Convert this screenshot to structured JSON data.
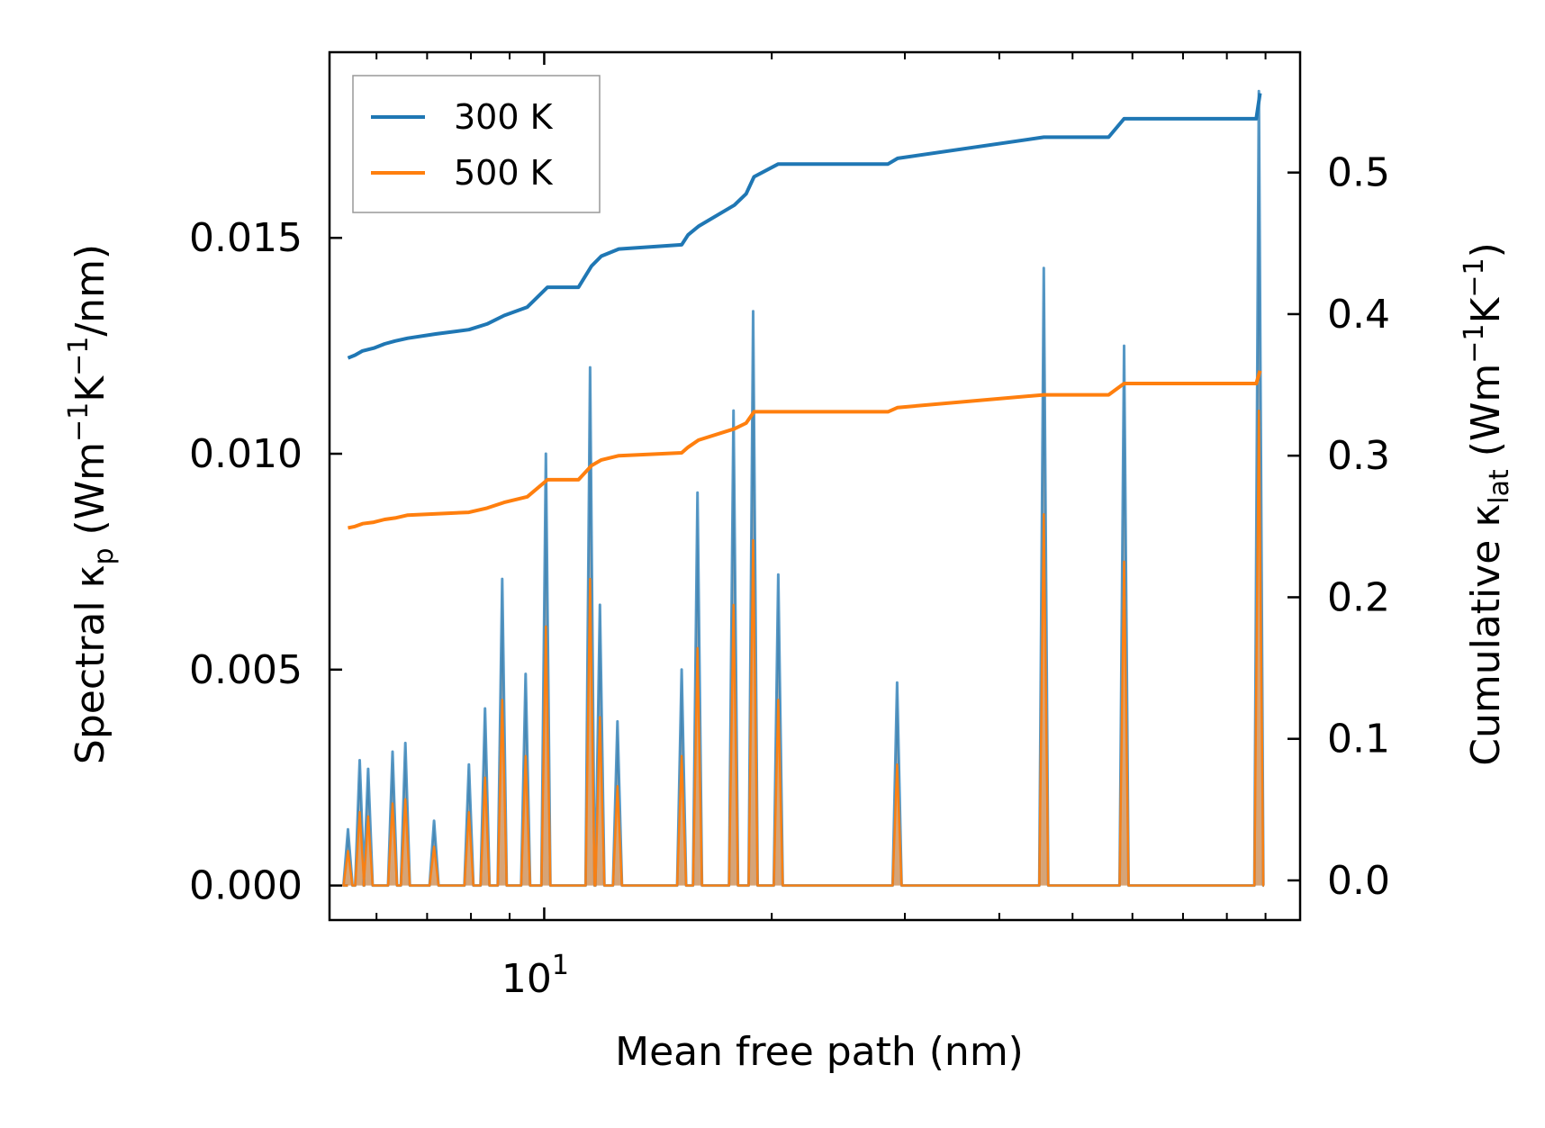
{
  "chart_data": {
    "type": "line",
    "xlabel": "Mean free path (nm)",
    "ylabel_left": {
      "main": "Spectral κ",
      "sub": "p",
      "units_pre": " (Wm",
      "exp1": "−1",
      "mid": "K",
      "exp2": "−1",
      "units_post": "/nm)"
    },
    "ylabel_right": {
      "main": "Cumulative κ",
      "sub": "lat",
      "units_pre": " (Wm",
      "exp1": "−1",
      "mid": "K",
      "exp2": "−1",
      "units_post": ")"
    },
    "xscale": "log",
    "xlim": [
      5.2,
      100
    ],
    "x_major_tick": {
      "value": 10,
      "base": "10",
      "exponent": "1"
    },
    "y_left_lim": [
      -0.0008,
      0.0193
    ],
    "y_left_ticks": [
      0.0,
      0.005,
      0.01,
      0.015
    ],
    "y_left_tick_labels": [
      "0.000",
      "0.005",
      "0.010",
      "0.015"
    ],
    "y_right_lim": [
      -0.028,
      0.585
    ],
    "y_right_ticks": [
      0.0,
      0.1,
      0.2,
      0.3,
      0.4,
      0.5
    ],
    "y_right_tick_labels": [
      "0.0",
      "0.1",
      "0.2",
      "0.3",
      "0.4",
      "0.5"
    ],
    "legend_position": "top-left",
    "series": [
      {
        "name": "300 K",
        "color": "#1f77b4",
        "spectral_peaks": [
          [
            5.5,
            0.0013
          ],
          [
            5.7,
            0.0029
          ],
          [
            5.85,
            0.0027
          ],
          [
            6.3,
            0.0031
          ],
          [
            6.55,
            0.0033
          ],
          [
            7.15,
            0.0015
          ],
          [
            7.95,
            0.0028
          ],
          [
            8.35,
            0.0041
          ],
          [
            8.8,
            0.0071
          ],
          [
            9.45,
            0.0049
          ],
          [
            10.05,
            0.01
          ],
          [
            11.5,
            0.012
          ],
          [
            11.85,
            0.0065
          ],
          [
            12.5,
            0.0038
          ],
          [
            15.2,
            0.005
          ],
          [
            15.95,
            0.0091
          ],
          [
            17.8,
            0.011
          ],
          [
            18.9,
            0.0133
          ],
          [
            20.4,
            0.0072
          ],
          [
            29.3,
            0.0047
          ],
          [
            45.8,
            0.0143
          ],
          [
            58.5,
            0.0125
          ],
          [
            88.2,
            0.0184
          ]
        ],
        "cumulative": [
          [
            5.5,
            0.369
          ],
          [
            5.62,
            0.371
          ],
          [
            5.75,
            0.374
          ],
          [
            5.95,
            0.376
          ],
          [
            6.15,
            0.379
          ],
          [
            6.35,
            0.381
          ],
          [
            6.6,
            0.383
          ],
          [
            7.2,
            0.386
          ],
          [
            7.95,
            0.389
          ],
          [
            8.4,
            0.393
          ],
          [
            8.85,
            0.399
          ],
          [
            9.5,
            0.405
          ],
          [
            10.1,
            0.419
          ],
          [
            11.1,
            0.419
          ],
          [
            11.55,
            0.434
          ],
          [
            11.9,
            0.441
          ],
          [
            12.55,
            0.446
          ],
          [
            15.2,
            0.449
          ],
          [
            15.5,
            0.456
          ],
          [
            16.0,
            0.462
          ],
          [
            17.85,
            0.477
          ],
          [
            18.5,
            0.485
          ],
          [
            18.95,
            0.497
          ],
          [
            20.4,
            0.506
          ],
          [
            28.5,
            0.506
          ],
          [
            29.35,
            0.51
          ],
          [
            45.8,
            0.525
          ],
          [
            55.8,
            0.525
          ],
          [
            58.5,
            0.538
          ],
          [
            87.5,
            0.538
          ],
          [
            88.5,
            0.556
          ]
        ]
      },
      {
        "name": "500 K",
        "color": "#ff7f0e",
        "spectral_peaks": [
          [
            5.5,
            0.0008
          ],
          [
            5.7,
            0.0017
          ],
          [
            5.85,
            0.0016
          ],
          [
            6.3,
            0.0019
          ],
          [
            6.55,
            0.002
          ],
          [
            7.15,
            0.0009
          ],
          [
            7.95,
            0.0017
          ],
          [
            8.35,
            0.0025
          ],
          [
            8.8,
            0.0043
          ],
          [
            9.45,
            0.003
          ],
          [
            10.05,
            0.006
          ],
          [
            11.5,
            0.0071
          ],
          [
            11.85,
            0.0039
          ],
          [
            12.5,
            0.0023
          ],
          [
            15.2,
            0.003
          ],
          [
            15.95,
            0.0055
          ],
          [
            17.8,
            0.0065
          ],
          [
            18.9,
            0.008
          ],
          [
            20.4,
            0.0043
          ],
          [
            29.3,
            0.0028
          ],
          [
            45.8,
            0.0086
          ],
          [
            58.5,
            0.0075
          ],
          [
            88.2,
            0.011
          ]
        ],
        "cumulative": [
          [
            5.5,
            0.249
          ],
          [
            5.62,
            0.25
          ],
          [
            5.75,
            0.252
          ],
          [
            5.95,
            0.253
          ],
          [
            6.15,
            0.255
          ],
          [
            6.35,
            0.256
          ],
          [
            6.6,
            0.258
          ],
          [
            7.2,
            0.259
          ],
          [
            7.95,
            0.26
          ],
          [
            8.4,
            0.263
          ],
          [
            8.85,
            0.267
          ],
          [
            9.5,
            0.271
          ],
          [
            10.1,
            0.283
          ],
          [
            11.1,
            0.283
          ],
          [
            11.55,
            0.293
          ],
          [
            11.9,
            0.297
          ],
          [
            12.55,
            0.3
          ],
          [
            15.2,
            0.302
          ],
          [
            15.5,
            0.306
          ],
          [
            16.0,
            0.311
          ],
          [
            17.85,
            0.319
          ],
          [
            18.5,
            0.323
          ],
          [
            18.95,
            0.331
          ],
          [
            20.4,
            0.331
          ],
          [
            28.5,
            0.331
          ],
          [
            29.35,
            0.334
          ],
          [
            45.8,
            0.343
          ],
          [
            55.8,
            0.343
          ],
          [
            58.5,
            0.351
          ],
          [
            87.5,
            0.351
          ],
          [
            88.5,
            0.36
          ]
        ]
      }
    ]
  }
}
